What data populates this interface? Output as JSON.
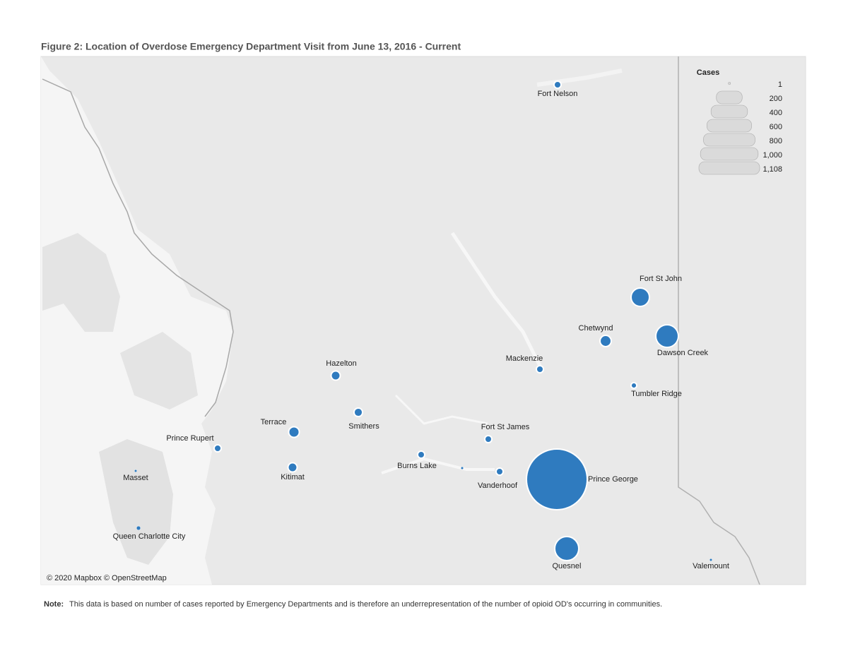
{
  "chart_data": {
    "type": "bubble-map",
    "title": "Figure 2: Location of Overdose Emergency Department Visit from June 13, 2016 - Current",
    "size_legend_title": "Cases",
    "locations": [
      "Fort Nelson",
      "Fort St John",
      "Dawson Creek",
      "Chetwynd",
      "Mackenzie",
      "Tumbler Ridge",
      "Hazelton",
      "Smithers",
      "Terrace",
      "Prince Rupert",
      "Kitimat",
      "Fort St James",
      "Burns Lake",
      null,
      "Vanderhoof",
      "Prince George",
      "Quesnel",
      "Masset",
      "Queen Charlotte City",
      "Valemount"
    ],
    "values": [
      15,
      101,
      153,
      38,
      15,
      10,
      25,
      22,
      34,
      15,
      25,
      15,
      15,
      2,
      15,
      1108,
      173,
      2,
      5,
      2
    ],
    "size_legend": [
      1,
      200,
      400,
      600,
      800,
      {
        "value": 1000,
        "label": "1,000"
      },
      {
        "value": 1108,
        "label": "1,108"
      }
    ],
    "color": "#2f7bbf",
    "attribution": "© 2020 Mapbox © OpenStreetMap"
  },
  "note": {
    "label": "Note:",
    "text": "This data is based on number of cases reported by Emergency Departments and is therefore an underrepresentation of the number of opioid OD's occurring in communities."
  }
}
